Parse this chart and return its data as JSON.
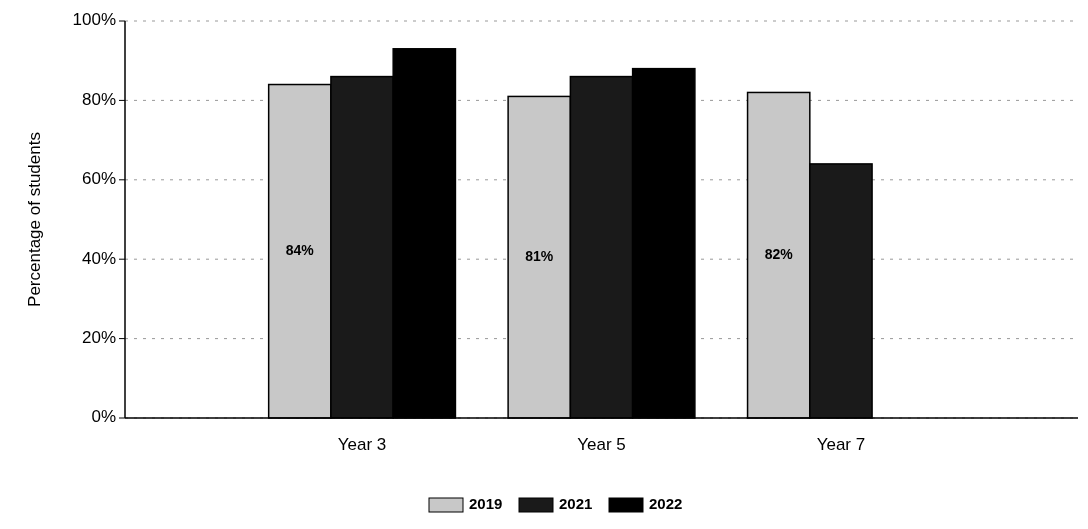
{
  "chart_data": {
    "type": "bar",
    "ylabel": "Percentage of students",
    "categories": [
      "Year 3",
      "Year 5",
      "Year 7"
    ],
    "series": [
      {
        "name": "2019",
        "color": "#c8c8c8",
        "values": [
          84,
          81,
          82
        ],
        "value_labels": [
          "84%",
          "81%",
          "82%"
        ]
      },
      {
        "name": "2021",
        "color": "#1a1a1a",
        "values": [
          86,
          86,
          64
        ]
      },
      {
        "name": "2022",
        "color": "#000000",
        "values": [
          93,
          88,
          null
        ]
      }
    ],
    "ylim": [
      0,
      100
    ],
    "yticks": [
      {
        "value": 0,
        "label": "0%"
      },
      {
        "value": 20,
        "label": "20%"
      },
      {
        "value": 40,
        "label": "40%"
      },
      {
        "value": 60,
        "label": "60%"
      },
      {
        "value": 80,
        "label": "80%"
      },
      {
        "value": 100,
        "label": "100%"
      }
    ],
    "grid": "y",
    "legend": "bottom"
  }
}
